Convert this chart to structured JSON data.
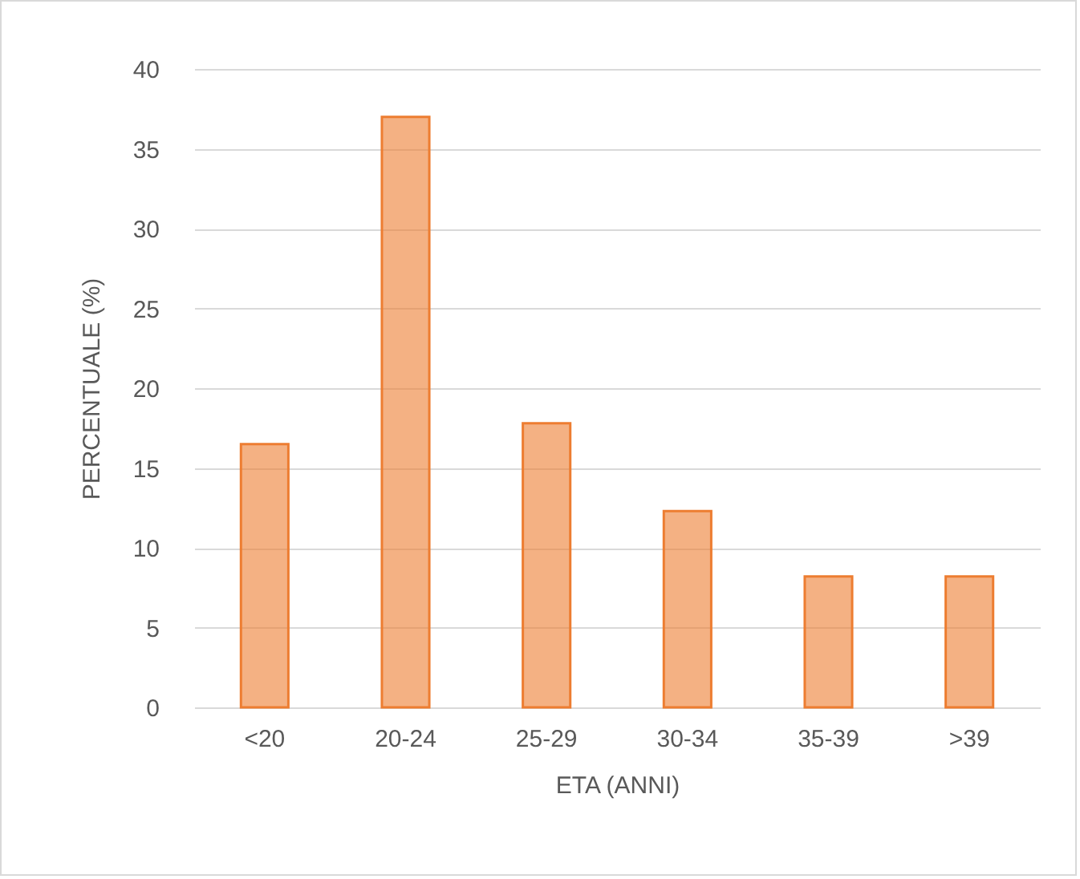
{
  "chart_data": {
    "type": "bar",
    "xlabel": "ETA (ANNI)",
    "ylabel": "PERCENTUALE (%)",
    "categories": [
      "<20",
      "20-24",
      "25-29",
      "30-34",
      "35-39",
      ">39"
    ],
    "values": [
      16.5,
      37,
      17.8,
      12.3,
      8.2,
      8.2
    ],
    "color": "#ed7d31",
    "ylim": [
      0,
      40
    ],
    "yticks": [
      0,
      5,
      10,
      15,
      20,
      25,
      30,
      35,
      40
    ],
    "grid": "y"
  }
}
